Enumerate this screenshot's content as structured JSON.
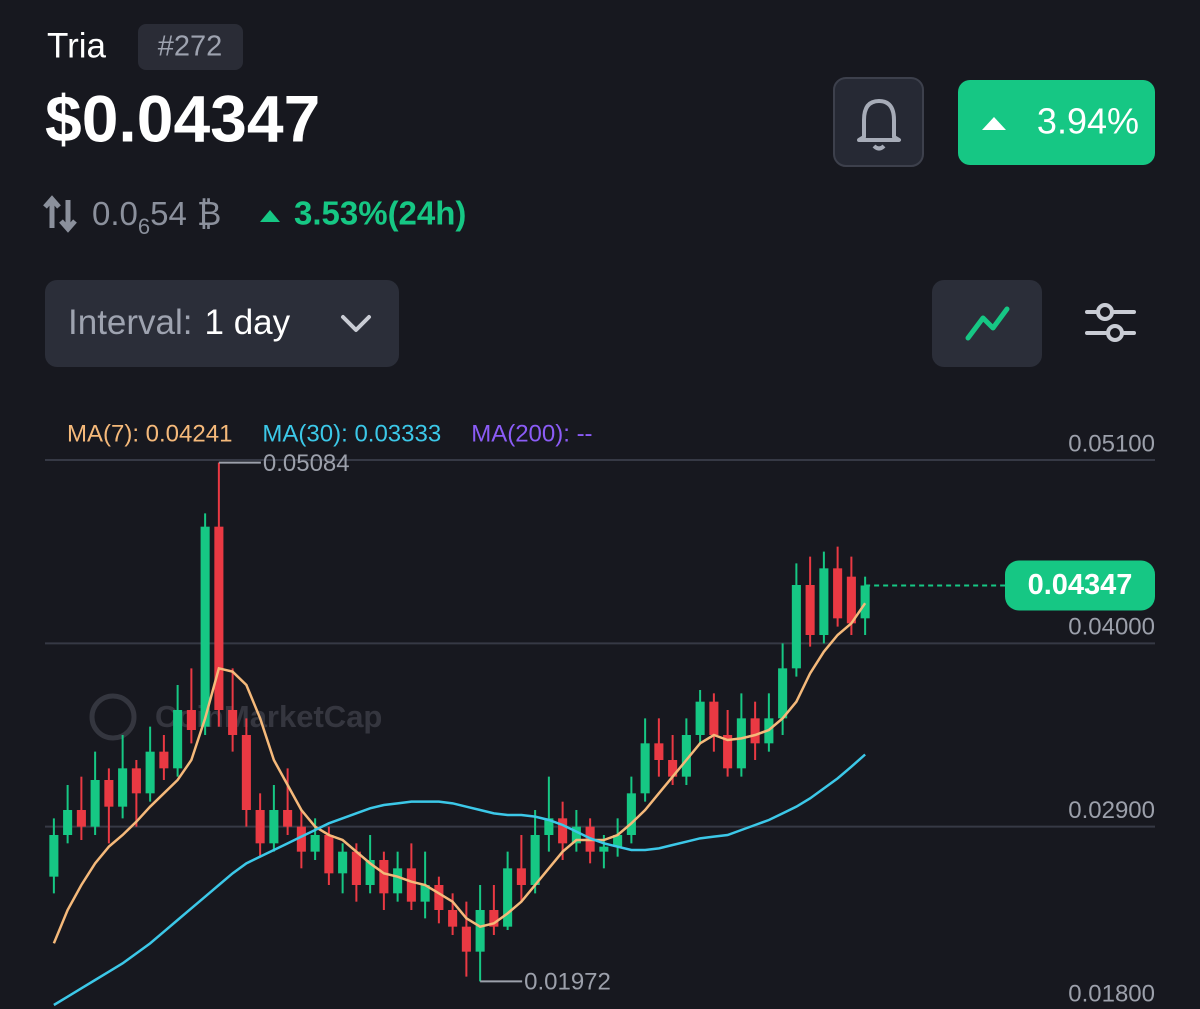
{
  "header": {
    "name": "Tria",
    "rank": "#272",
    "price": "$0.04347",
    "change_button": "3.94%",
    "btc_price": {
      "prefix": "0.0",
      "zeros": "6",
      "digits": "54",
      "symbol": "₿"
    },
    "change_24h": "3.53%(24h)"
  },
  "controls": {
    "interval_label": "Interval:",
    "interval_value": "1 day"
  },
  "chart_data": {
    "type": "candlestick",
    "watermark": "CoinMarketCap",
    "up_color": "#16c784",
    "down_color": "#ea3943",
    "ylim": [
      0.018,
      0.051
    ],
    "yticks": [
      {
        "value": 0.051,
        "label": "0.05100"
      },
      {
        "value": 0.04,
        "label": "0.04000"
      },
      {
        "value": 0.029,
        "label": "0.02900"
      },
      {
        "value": 0.018,
        "label": "0.01800"
      }
    ],
    "grid": true,
    "high_marker_index": 12,
    "low_marker_index": 31,
    "candles": [
      [
        0.026,
        0.0295,
        0.025,
        0.0285
      ],
      [
        0.0285,
        0.0315,
        0.028,
        0.03
      ],
      [
        0.03,
        0.032,
        0.0282,
        0.029
      ],
      [
        0.029,
        0.0335,
        0.0285,
        0.0318
      ],
      [
        0.0318,
        0.0325,
        0.028,
        0.0302
      ],
      [
        0.0302,
        0.0345,
        0.0295,
        0.0325
      ],
      [
        0.0325,
        0.033,
        0.029,
        0.031
      ],
      [
        0.031,
        0.035,
        0.0305,
        0.0335
      ],
      [
        0.0335,
        0.0345,
        0.0318,
        0.0325
      ],
      [
        0.0325,
        0.0375,
        0.032,
        0.036
      ],
      [
        0.036,
        0.0385,
        0.034,
        0.0348
      ],
      [
        0.035,
        0.0478,
        0.0345,
        0.047
      ],
      [
        0.047,
        0.05084,
        0.035,
        0.036
      ],
      [
        0.036,
        0.0385,
        0.0335,
        0.0345
      ],
      [
        0.0345,
        0.0355,
        0.029,
        0.03
      ],
      [
        0.03,
        0.031,
        0.0272,
        0.028
      ],
      [
        0.028,
        0.0315,
        0.0275,
        0.03
      ],
      [
        0.03,
        0.0325,
        0.0285,
        0.029
      ],
      [
        0.029,
        0.03,
        0.0265,
        0.0275
      ],
      [
        0.0275,
        0.0295,
        0.027,
        0.0285
      ],
      [
        0.0285,
        0.029,
        0.0255,
        0.0262
      ],
      [
        0.0262,
        0.028,
        0.025,
        0.0275
      ],
      [
        0.0275,
        0.028,
        0.0245,
        0.0255
      ],
      [
        0.0255,
        0.0285,
        0.025,
        0.027
      ],
      [
        0.027,
        0.0275,
        0.024,
        0.025
      ],
      [
        0.025,
        0.0275,
        0.0245,
        0.0265
      ],
      [
        0.0265,
        0.028,
        0.024,
        0.0245
      ],
      [
        0.0245,
        0.0275,
        0.0235,
        0.0255
      ],
      [
        0.0255,
        0.026,
        0.0232,
        0.024
      ],
      [
        0.024,
        0.025,
        0.0225,
        0.023
      ],
      [
        0.023,
        0.0245,
        0.02,
        0.0215
      ],
      [
        0.0215,
        0.0255,
        0.01972,
        0.024
      ],
      [
        0.024,
        0.0255,
        0.0225,
        0.023
      ],
      [
        0.023,
        0.0275,
        0.0228,
        0.0265
      ],
      [
        0.0265,
        0.0285,
        0.0245,
        0.0255
      ],
      [
        0.0255,
        0.03,
        0.025,
        0.0285
      ],
      [
        0.0285,
        0.032,
        0.0275,
        0.0295
      ],
      [
        0.0295,
        0.0305,
        0.027,
        0.028
      ],
      [
        0.028,
        0.03,
        0.0275,
        0.029
      ],
      [
        0.029,
        0.0295,
        0.0268,
        0.0275
      ],
      [
        0.0275,
        0.0285,
        0.0265,
        0.0278
      ],
      [
        0.0278,
        0.0295,
        0.0272,
        0.0285
      ],
      [
        0.0285,
        0.032,
        0.028,
        0.031
      ],
      [
        0.031,
        0.0355,
        0.0305,
        0.034
      ],
      [
        0.034,
        0.0355,
        0.032,
        0.033
      ],
      [
        0.033,
        0.0345,
        0.0315,
        0.032
      ],
      [
        0.032,
        0.0355,
        0.0315,
        0.0345
      ],
      [
        0.0345,
        0.0372,
        0.034,
        0.0365
      ],
      [
        0.0365,
        0.037,
        0.0335,
        0.0345
      ],
      [
        0.0345,
        0.036,
        0.032,
        0.0325
      ],
      [
        0.0325,
        0.037,
        0.032,
        0.0355
      ],
      [
        0.0355,
        0.0365,
        0.033,
        0.034
      ],
      [
        0.034,
        0.037,
        0.0335,
        0.0355
      ],
      [
        0.0355,
        0.04,
        0.0345,
        0.0385
      ],
      [
        0.0385,
        0.0448,
        0.038,
        0.0435
      ],
      [
        0.0435,
        0.0452,
        0.0398,
        0.0405
      ],
      [
        0.0405,
        0.0455,
        0.04,
        0.0445
      ],
      [
        0.0445,
        0.0458,
        0.041,
        0.0415
      ],
      [
        0.044,
        0.0452,
        0.0405,
        0.0412
      ],
      [
        0.0415,
        0.044,
        0.0405,
        0.04347
      ]
    ],
    "series": [
      {
        "name": "MA(7): 0.04241",
        "color": "#f5b97a",
        "values": [
          0.022,
          0.024,
          0.0255,
          0.0268,
          0.0278,
          0.0285,
          0.0293,
          0.0302,
          0.031,
          0.0318,
          0.033,
          0.0355,
          0.0385,
          0.0383,
          0.0375,
          0.0355,
          0.033,
          0.0315,
          0.03,
          0.029,
          0.0285,
          0.0282,
          0.0275,
          0.0268,
          0.0262,
          0.026,
          0.0257,
          0.0255,
          0.025,
          0.0245,
          0.0235,
          0.023,
          0.0232,
          0.0238,
          0.0245,
          0.0255,
          0.0265,
          0.0275,
          0.0282,
          0.0282,
          0.0282,
          0.0285,
          0.0292,
          0.03,
          0.031,
          0.032,
          0.033,
          0.034,
          0.0345,
          0.0342,
          0.0343,
          0.0345,
          0.0348,
          0.0355,
          0.0365,
          0.0382,
          0.0395,
          0.0405,
          0.0412,
          0.04241
        ]
      },
      {
        "name": "MA(30): 0.03333",
        "color": "#3cc8e8",
        "values": [
          0.0183,
          0.0188,
          0.0193,
          0.0198,
          0.0203,
          0.0208,
          0.0214,
          0.022,
          0.0227,
          0.0234,
          0.0241,
          0.0248,
          0.0255,
          0.0262,
          0.0268,
          0.0272,
          0.0276,
          0.028,
          0.0284,
          0.0288,
          0.0292,
          0.0295,
          0.0298,
          0.0301,
          0.0303,
          0.0304,
          0.0305,
          0.0305,
          0.0305,
          0.0304,
          0.0302,
          0.03,
          0.0298,
          0.0297,
          0.0297,
          0.0296,
          0.0294,
          0.0291,
          0.0287,
          0.0283,
          0.028,
          0.0278,
          0.0276,
          0.0276,
          0.0277,
          0.0279,
          0.0281,
          0.0283,
          0.0284,
          0.0285,
          0.0288,
          0.0291,
          0.0294,
          0.0298,
          0.0302,
          0.0307,
          0.0313,
          0.0319,
          0.0326,
          0.03333
        ]
      },
      {
        "name": "MA(200): --",
        "color": "#8b5cf6"
      }
    ]
  }
}
